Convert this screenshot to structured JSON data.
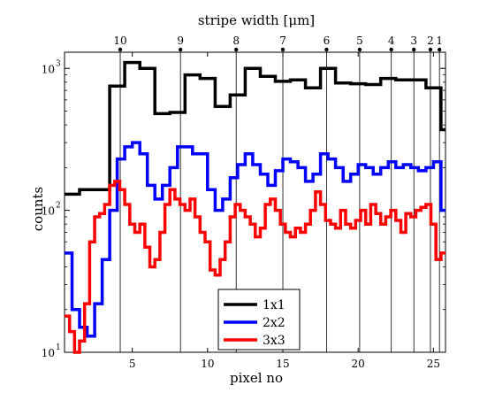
{
  "chart_data": {
    "type": "line",
    "title": "stripe width [μm]",
    "xlabel": "pixel no",
    "ylabel": "counts",
    "xlim": [
      0.5,
      25.8
    ],
    "ylim": [
      10,
      1300
    ],
    "yscale": "log",
    "x_ticks": [
      5,
      10,
      15,
      20,
      25
    ],
    "y_ticks": [
      {
        "value": 10,
        "base": "10",
        "exp": "1"
      },
      {
        "value": 100,
        "base": "10",
        "exp": "2"
      },
      {
        "value": 1000,
        "base": "10",
        "exp": "3"
      }
    ],
    "top_axis": {
      "label": "stripe width [μm]",
      "markers": [
        {
          "x": 4.2,
          "label": "10"
        },
        {
          "x": 8.2,
          "label": "9"
        },
        {
          "x": 11.9,
          "label": "8"
        },
        {
          "x": 15.0,
          "label": "7"
        },
        {
          "x": 17.9,
          "label": "6"
        },
        {
          "x": 20.1,
          "label": "5"
        },
        {
          "x": 22.2,
          "label": "4"
        },
        {
          "x": 23.7,
          "label": "3"
        },
        {
          "x": 24.8,
          "label": "2"
        },
        {
          "x": 25.4,
          "label": "1"
        }
      ]
    },
    "legend_position": "bottom-center",
    "series": [
      {
        "name": "1x1",
        "color": "#000000",
        "step_width": 1.0,
        "x": [
          0.5,
          1.5,
          2.5,
          3.5,
          4.5,
          5.5,
          6.5,
          7.5,
          8.5,
          9.5,
          10.5,
          11.5,
          12.5,
          13.5,
          14.5,
          15.5,
          16.5,
          17.5,
          18.5,
          19.5,
          20.5,
          21.5,
          22.5,
          23.5,
          24.5,
          25.5
        ],
        "values": [
          130,
          140,
          140,
          750,
          1100,
          1000,
          480,
          490,
          900,
          850,
          540,
          650,
          1000,
          880,
          810,
          830,
          730,
          1000,
          790,
          780,
          770,
          850,
          830,
          830,
          730,
          370
        ]
      },
      {
        "name": "2x2",
        "color": "#0000ff",
        "step_width": 0.5,
        "x": [
          0.5,
          1.0,
          1.5,
          2.0,
          2.5,
          3.0,
          3.5,
          4.0,
          4.5,
          5.0,
          5.5,
          6.0,
          6.5,
          7.0,
          7.5,
          8.0,
          8.5,
          9.0,
          9.5,
          10.0,
          10.5,
          11.0,
          11.5,
          12.0,
          12.5,
          13.0,
          13.5,
          14.0,
          14.5,
          15.0,
          15.5,
          16.0,
          16.5,
          17.0,
          17.5,
          18.0,
          18.5,
          19.0,
          19.5,
          20.0,
          20.5,
          21.0,
          21.5,
          22.0,
          22.5,
          23.0,
          23.5,
          24.0,
          24.5,
          25.0,
          25.5
        ],
        "values": [
          50,
          20,
          15,
          13,
          22,
          45,
          100,
          230,
          280,
          300,
          250,
          150,
          120,
          150,
          200,
          280,
          280,
          250,
          250,
          140,
          100,
          120,
          170,
          210,
          250,
          210,
          180,
          150,
          190,
          230,
          220,
          200,
          160,
          180,
          250,
          230,
          200,
          160,
          180,
          210,
          200,
          180,
          200,
          220,
          200,
          210,
          200,
          190,
          200,
          220,
          100
        ]
      },
      {
        "name": "3x3",
        "color": "#ff0000",
        "step_width": 0.333,
        "x": [
          0.5,
          0.833,
          1.167,
          1.5,
          1.833,
          2.167,
          2.5,
          2.833,
          3.167,
          3.5,
          3.833,
          4.167,
          4.5,
          4.833,
          5.167,
          5.5,
          5.833,
          6.167,
          6.5,
          6.833,
          7.167,
          7.5,
          7.833,
          8.167,
          8.5,
          8.833,
          9.167,
          9.5,
          9.833,
          10.167,
          10.5,
          10.833,
          11.167,
          11.5,
          11.833,
          12.167,
          12.5,
          12.833,
          13.167,
          13.5,
          13.833,
          14.167,
          14.5,
          14.833,
          15.167,
          15.5,
          15.833,
          16.167,
          16.5,
          16.833,
          17.167,
          17.5,
          17.833,
          18.167,
          18.5,
          18.833,
          19.167,
          19.5,
          19.833,
          20.167,
          20.5,
          20.833,
          21.167,
          21.5,
          21.833,
          22.167,
          22.5,
          22.833,
          23.167,
          23.5,
          23.833,
          24.167,
          24.5,
          24.833,
          25.167,
          25.5
        ],
        "values": [
          18,
          14,
          10,
          12,
          22,
          60,
          90,
          95,
          110,
          150,
          160,
          140,
          110,
          80,
          70,
          80,
          55,
          40,
          45,
          70,
          110,
          140,
          120,
          110,
          100,
          120,
          90,
          70,
          60,
          38,
          35,
          45,
          60,
          90,
          110,
          100,
          90,
          80,
          65,
          75,
          110,
          120,
          100,
          80,
          70,
          65,
          75,
          70,
          80,
          100,
          135,
          110,
          85,
          80,
          75,
          100,
          80,
          75,
          85,
          100,
          80,
          110,
          95,
          80,
          90,
          100,
          85,
          70,
          95,
          90,
          100,
          105,
          110,
          80,
          45,
          50
        ]
      }
    ]
  }
}
